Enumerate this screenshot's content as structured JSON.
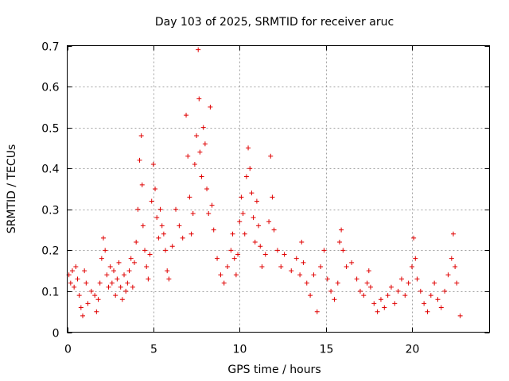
{
  "chart_data": {
    "type": "scatter",
    "title": "Day 103 of 2025, SRMTID for receiver aruc",
    "xlabel": "GPS time / hours",
    "ylabel": "SRMTID / TECUs",
    "xlim": [
      0,
      24.5
    ],
    "ylim": [
      0,
      0.7
    ],
    "xticks": [
      0,
      5,
      10,
      15,
      20
    ],
    "yticks": [
      0,
      0.1,
      0.2,
      0.3,
      0.4,
      0.5,
      0.6,
      0.7
    ],
    "xtick_labels": [
      "0",
      "5",
      "10",
      "15",
      "20"
    ],
    "ytick_labels": [
      "0",
      "0.1",
      "0.2",
      "0.3",
      "0.4",
      "0.5",
      "0.6",
      "0.7"
    ],
    "grid": true,
    "marker": "+",
    "color": "#e00000",
    "series": [
      {
        "name": "aruc",
        "points": [
          [
            0.1,
            0.14
          ],
          [
            0.2,
            0.12
          ],
          [
            0.3,
            0.15
          ],
          [
            0.4,
            0.11
          ],
          [
            0.5,
            0.16
          ],
          [
            0.6,
            0.13
          ],
          [
            0.7,
            0.09
          ],
          [
            0.8,
            0.06
          ],
          [
            0.9,
            0.04
          ],
          [
            1.0,
            0.15
          ],
          [
            1.1,
            0.12
          ],
          [
            1.2,
            0.07
          ],
          [
            1.4,
            0.1
          ],
          [
            1.6,
            0.09
          ],
          [
            1.7,
            0.05
          ],
          [
            1.8,
            0.08
          ],
          [
            1.9,
            0.12
          ],
          [
            2.0,
            0.18
          ],
          [
            2.1,
            0.23
          ],
          [
            2.2,
            0.2
          ],
          [
            2.3,
            0.14
          ],
          [
            2.4,
            0.11
          ],
          [
            2.5,
            0.16
          ],
          [
            2.6,
            0.12
          ],
          [
            2.7,
            0.15
          ],
          [
            2.8,
            0.09
          ],
          [
            2.9,
            0.13
          ],
          [
            3.0,
            0.17
          ],
          [
            3.1,
            0.11
          ],
          [
            3.2,
            0.08
          ],
          [
            3.3,
            0.14
          ],
          [
            3.4,
            0.1
          ],
          [
            3.5,
            0.12
          ],
          [
            3.6,
            0.15
          ],
          [
            3.7,
            0.18
          ],
          [
            3.8,
            0.11
          ],
          [
            3.9,
            0.17
          ],
          [
            4.0,
            0.22
          ],
          [
            4.1,
            0.3
          ],
          [
            4.2,
            0.42
          ],
          [
            4.3,
            0.48
          ],
          [
            4.35,
            0.36
          ],
          [
            4.4,
            0.26
          ],
          [
            4.5,
            0.2
          ],
          [
            4.6,
            0.16
          ],
          [
            4.7,
            0.13
          ],
          [
            4.8,
            0.19
          ],
          [
            4.9,
            0.32
          ],
          [
            5.0,
            0.41
          ],
          [
            5.1,
            0.35
          ],
          [
            5.2,
            0.28
          ],
          [
            5.3,
            0.23
          ],
          [
            5.4,
            0.3
          ],
          [
            5.5,
            0.26
          ],
          [
            5.6,
            0.24
          ],
          [
            5.7,
            0.2
          ],
          [
            5.8,
            0.15
          ],
          [
            5.9,
            0.13
          ],
          [
            6.1,
            0.21
          ],
          [
            6.3,
            0.3
          ],
          [
            6.5,
            0.26
          ],
          [
            6.7,
            0.23
          ],
          [
            6.9,
            0.53
          ],
          [
            7.0,
            0.43
          ],
          [
            7.1,
            0.33
          ],
          [
            7.2,
            0.24
          ],
          [
            7.3,
            0.29
          ],
          [
            7.4,
            0.41
          ],
          [
            7.5,
            0.48
          ],
          [
            7.6,
            0.69
          ],
          [
            7.65,
            0.57
          ],
          [
            7.7,
            0.44
          ],
          [
            7.8,
            0.38
          ],
          [
            7.9,
            0.5
          ],
          [
            8.0,
            0.46
          ],
          [
            8.1,
            0.35
          ],
          [
            8.2,
            0.29
          ],
          [
            8.3,
            0.55
          ],
          [
            8.4,
            0.31
          ],
          [
            8.5,
            0.25
          ],
          [
            8.7,
            0.18
          ],
          [
            8.9,
            0.14
          ],
          [
            9.1,
            0.12
          ],
          [
            9.3,
            0.16
          ],
          [
            9.5,
            0.2
          ],
          [
            9.6,
            0.24
          ],
          [
            9.7,
            0.18
          ],
          [
            9.8,
            0.14
          ],
          [
            9.9,
            0.19
          ],
          [
            10.0,
            0.27
          ],
          [
            10.1,
            0.33
          ],
          [
            10.2,
            0.29
          ],
          [
            10.3,
            0.24
          ],
          [
            10.4,
            0.38
          ],
          [
            10.5,
            0.45
          ],
          [
            10.6,
            0.4
          ],
          [
            10.7,
            0.34
          ],
          [
            10.8,
            0.28
          ],
          [
            10.9,
            0.22
          ],
          [
            11.0,
            0.32
          ],
          [
            11.1,
            0.26
          ],
          [
            11.2,
            0.21
          ],
          [
            11.3,
            0.16
          ],
          [
            11.5,
            0.19
          ],
          [
            11.7,
            0.27
          ],
          [
            11.8,
            0.43
          ],
          [
            11.9,
            0.33
          ],
          [
            12.0,
            0.25
          ],
          [
            12.2,
            0.2
          ],
          [
            12.4,
            0.16
          ],
          [
            12.6,
            0.19
          ],
          [
            13.0,
            0.15
          ],
          [
            13.3,
            0.18
          ],
          [
            13.5,
            0.14
          ],
          [
            13.6,
            0.22
          ],
          [
            13.7,
            0.17
          ],
          [
            13.9,
            0.12
          ],
          [
            14.1,
            0.09
          ],
          [
            14.3,
            0.14
          ],
          [
            14.5,
            0.05
          ],
          [
            14.7,
            0.16
          ],
          [
            14.9,
            0.2
          ],
          [
            15.1,
            0.13
          ],
          [
            15.3,
            0.1
          ],
          [
            15.5,
            0.08
          ],
          [
            15.7,
            0.12
          ],
          [
            15.8,
            0.22
          ],
          [
            15.9,
            0.25
          ],
          [
            16.0,
            0.2
          ],
          [
            16.2,
            0.16
          ],
          [
            16.5,
            0.17
          ],
          [
            16.8,
            0.13
          ],
          [
            17.0,
            0.1
          ],
          [
            17.2,
            0.09
          ],
          [
            17.4,
            0.12
          ],
          [
            17.5,
            0.15
          ],
          [
            17.6,
            0.11
          ],
          [
            17.8,
            0.07
          ],
          [
            18.0,
            0.05
          ],
          [
            18.2,
            0.08
          ],
          [
            18.4,
            0.06
          ],
          [
            18.6,
            0.09
          ],
          [
            18.8,
            0.11
          ],
          [
            19.0,
            0.07
          ],
          [
            19.2,
            0.1
          ],
          [
            19.4,
            0.13
          ],
          [
            19.6,
            0.09
          ],
          [
            19.8,
            0.12
          ],
          [
            20.0,
            0.16
          ],
          [
            20.1,
            0.23
          ],
          [
            20.2,
            0.18
          ],
          [
            20.3,
            0.13
          ],
          [
            20.5,
            0.1
          ],
          [
            20.7,
            0.07
          ],
          [
            20.9,
            0.05
          ],
          [
            21.1,
            0.09
          ],
          [
            21.3,
            0.12
          ],
          [
            21.5,
            0.08
          ],
          [
            21.7,
            0.06
          ],
          [
            21.9,
            0.1
          ],
          [
            22.1,
            0.14
          ],
          [
            22.3,
            0.18
          ],
          [
            22.4,
            0.24
          ],
          [
            22.5,
            0.16
          ],
          [
            22.6,
            0.12
          ],
          [
            22.8,
            0.04
          ]
        ]
      }
    ]
  }
}
